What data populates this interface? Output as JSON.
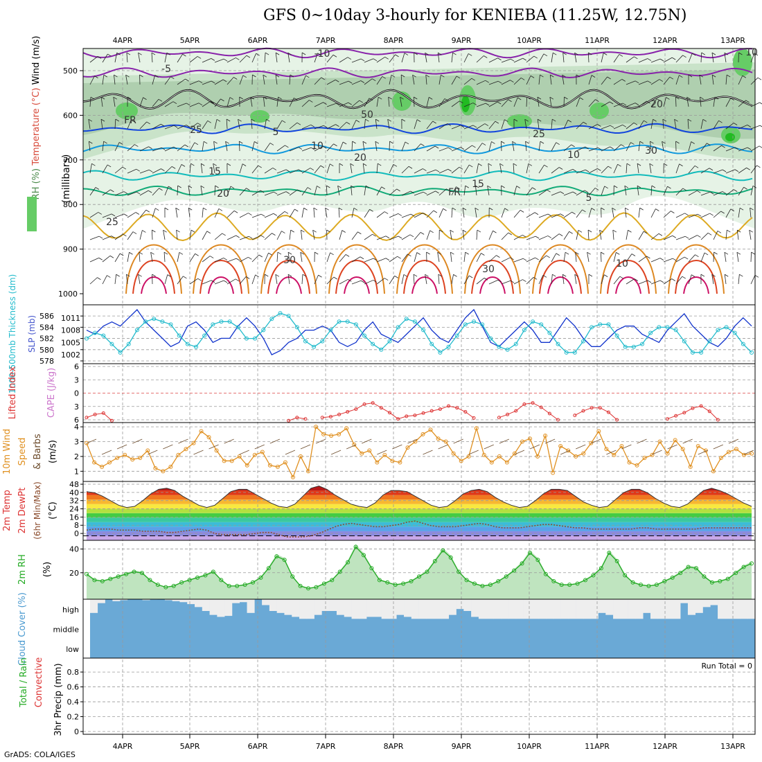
{
  "title": "GFS 0~10day 3-hourly for KENIEBA (11.25W, 12.75N)",
  "credit": "GrADS: COLA/IGES",
  "run_total_label": "Run Total = 0",
  "colors": {
    "grid": "#999999",
    "slp": "#1133cc",
    "thickness": "#22bbcc",
    "lifted_index": "#dd3333",
    "wind_speed": "#e09020",
    "barb": "#6b4a2a",
    "rh": "#22aa22",
    "rh_fill": "#bfe4bf",
    "cloud_base": "#6aa9d6",
    "cloud_gap": "#eeeeee",
    "dewpoint": "#8a4a2a"
  },
  "chart_data": [
    {
      "type": "heatmap",
      "name": "upper-air",
      "ylabel_parts": [
        "RH (%)",
        "Temperature (°C)",
        "Wind (m/s)"
      ],
      "ylabel_units": "(millibars)",
      "y_ticks": [
        500,
        600,
        700,
        800,
        900,
        1000
      ],
      "ylim": [
        1000,
        450
      ],
      "x_ticks": [
        "4APR",
        "5APR",
        "6APR",
        "7APR",
        "8APR",
        "9APR",
        "10APR",
        "11APR",
        "12APR",
        "13APR"
      ],
      "contour_labels": [
        "-10",
        "-5",
        "FR",
        "5",
        "10",
        "15",
        "20",
        "25",
        "30",
        "10",
        "15",
        "20",
        "25",
        "30",
        "5",
        "10",
        "20",
        "25",
        "FR",
        "30",
        "10",
        "50"
      ],
      "isotherms": [
        {
          "label": "-10",
          "level": 460,
          "color": "#8822aa"
        },
        {
          "label": "-5",
          "level": 505,
          "color": "#8822aa"
        },
        {
          "label": "FR",
          "level": 565,
          "color": "#000000"
        },
        {
          "label": "5",
          "level": 630,
          "color": "#1144dd"
        },
        {
          "label": "10",
          "level": 675,
          "color": "#1199dd"
        },
        {
          "label": "15",
          "level": 735,
          "color": "#11bbbb"
        },
        {
          "label": "20",
          "level": 770,
          "color": "#11aa77"
        },
        {
          "label": "25",
          "level": 850,
          "color": "#ddaa22"
        }
      ]
    },
    {
      "type": "line",
      "name": "thickness-slp",
      "ylabel_left": "1000-500mb Thickness (dm)",
      "ylabel_right": "SLP (mb)",
      "thickness_ticks": [
        578,
        580,
        582,
        584,
        586
      ],
      "slp_ticks": [
        1002,
        1005,
        1008,
        1011
      ],
      "ylim_thickness": [
        578,
        587.5
      ],
      "ylim_slp": [
        1000.5,
        1013.5
      ],
      "series": [
        {
          "name": "SLP",
          "values": [
            1008,
            1007,
            1009,
            1010,
            1009,
            1011,
            1013,
            1010,
            1008,
            1006,
            1004,
            1005,
            1009,
            1010,
            1008,
            1005,
            1006,
            1006,
            1009,
            1011,
            1009,
            1006,
            1002,
            1003,
            1005,
            1006,
            1008,
            1008,
            1009,
            1008,
            1005,
            1004,
            1005,
            1008,
            1010,
            1007,
            1006,
            1005,
            1007,
            1009,
            1011,
            1008,
            1006,
            1005,
            1008,
            1011,
            1013,
            1009,
            1005,
            1004,
            1006,
            1008,
            1010,
            1008,
            1005,
            1005,
            1008,
            1011,
            1009,
            1006,
            1004,
            1004,
            1006,
            1008,
            1009,
            1009,
            1007,
            1006,
            1005,
            1008,
            1010,
            1012,
            1009,
            1007,
            1005,
            1004,
            1006,
            1009,
            1011,
            1009
          ]
        },
        {
          "name": "Thickness",
          "values": [
            582,
            583,
            582.5,
            581,
            579.5,
            581,
            583.5,
            585,
            585.5,
            585,
            584.5,
            582.5,
            581,
            580.5,
            582.5,
            584.5,
            585,
            585,
            584,
            582,
            582,
            583.5,
            585.5,
            586.5,
            586,
            584,
            581.5,
            580.5,
            581.5,
            583.5,
            585,
            585,
            584.5,
            582.5,
            581,
            580,
            581.5,
            584,
            585.5,
            585,
            583.5,
            581,
            579.5,
            580.5,
            582.5,
            584.5,
            585,
            584.5,
            582,
            580.5,
            580,
            581,
            583.5,
            585,
            584.5,
            583,
            581,
            579.5,
            579.5,
            581.5,
            584,
            584.5,
            584.5,
            582.5,
            580.5,
            580.5,
            581,
            583,
            584,
            584,
            583.5,
            581.5,
            579.5,
            579.5,
            581.5,
            583.5,
            584,
            583,
            581,
            579.5
          ]
        }
      ]
    },
    {
      "type": "line",
      "name": "lifted-index-cape",
      "ylabel_left": "Lifted Index",
      "ylabel_right": "CAPE (J/kg)",
      "y_ticks": [
        -6,
        -3,
        0,
        3,
        6
      ],
      "y_tick_labels": [
        "6",
        "3",
        "0",
        "3",
        "6"
      ],
      "ylim": [
        -6,
        6
      ],
      "series": [
        {
          "name": "Lifted Index",
          "values": [
            5.5,
            4.8,
            4.5,
            6.2,
            null,
            null,
            null,
            null,
            null,
            null,
            null,
            null,
            null,
            null,
            null,
            null,
            null,
            null,
            null,
            null,
            null,
            null,
            null,
            null,
            6.2,
            5.5,
            5.8,
            null,
            5.5,
            5.3,
            4.8,
            4.2,
            3.6,
            2.5,
            2.2,
            3.3,
            4.4,
            5.8,
            5.2,
            5.0,
            4.5,
            4.0,
            3.6,
            2.9,
            3.3,
            4.2,
            5.6,
            null,
            null,
            5.5,
            4.8,
            4.0,
            2.5,
            2.2,
            3.2,
            4.6,
            6.0,
            null,
            5.0,
            4.0,
            3.3,
            3.3,
            4.3,
            6.0,
            null,
            null,
            null,
            null,
            null,
            5.8,
            5.1,
            4.4,
            3.4,
            2.9,
            4.1,
            6.0,
            null,
            null,
            null,
            null
          ]
        }
      ]
    },
    {
      "type": "line",
      "name": "wind-10m",
      "ylabel": "10m Wind Speed & Barbs (m/s)",
      "y_ticks": [
        1,
        2,
        3,
        4
      ],
      "ylim": [
        0.5,
        4.1
      ],
      "series": [
        {
          "name": "Speed",
          "values": [
            2.9,
            1.6,
            1.3,
            1.6,
            1.9,
            2.1,
            1.8,
            1.9,
            2.4,
            1.2,
            1.0,
            1.3,
            2.1,
            2.5,
            2.9,
            3.7,
            3.3,
            2.4,
            1.7,
            1.7,
            2.0,
            1.4,
            2.1,
            2.3,
            1.4,
            1.3,
            1.6,
            0.6,
            2.0,
            1.0,
            4.0,
            3.5,
            3.4,
            3.5,
            3.9,
            2.8,
            2.2,
            2.4,
            1.6,
            2.1,
            1.7,
            1.6,
            2.6,
            3.0,
            3.5,
            3.8,
            3.2,
            3.0,
            2.2,
            1.7,
            2.0,
            3.9,
            2.1,
            1.6,
            2.0,
            1.6,
            2.2,
            3.0,
            3.2,
            2.0,
            3.4,
            0.9,
            2.7,
            2.4,
            2.0,
            2.2,
            2.9,
            3.7,
            2.5,
            2.1,
            2.7,
            1.6,
            1.4,
            1.9,
            2.1,
            3.0,
            2.2,
            3.1,
            2.5,
            1.3,
            2.7,
            2.4,
            1.0,
            1.9,
            2.3,
            2.5,
            2.1,
            2.2
          ]
        }
      ]
    },
    {
      "type": "area",
      "name": "temperature-dewpoint",
      "ylabel": "2m Temp 2m DewPt (6hr Min/Max) (°C)",
      "y_ticks": [
        0,
        8,
        16,
        24,
        32,
        40,
        48
      ],
      "ylim": [
        -4,
        48
      ],
      "series": [
        {
          "name": "2m Temp",
          "values": [
            39,
            38,
            35,
            31,
            27,
            25,
            26,
            31,
            37,
            41,
            42,
            40,
            35,
            31,
            27,
            25,
            27,
            33,
            39,
            41,
            41,
            37,
            33,
            29,
            26,
            25,
            28,
            35,
            42,
            44,
            41,
            36,
            32,
            28,
            26,
            25,
            29,
            36,
            40,
            40,
            39,
            35,
            31,
            27,
            25,
            26,
            31,
            37,
            40,
            41,
            39,
            34,
            30,
            27,
            25,
            26,
            31,
            37,
            41,
            41,
            40,
            35,
            30,
            27,
            25,
            26,
            32,
            38,
            41,
            41,
            38,
            33,
            29,
            26,
            25,
            28,
            34,
            40,
            42,
            40,
            37,
            33,
            29,
            26
          ]
        },
        {
          "name": "2m DewPt",
          "values": [
            5,
            6,
            6,
            6,
            5,
            5,
            5,
            4,
            4,
            4,
            3,
            3,
            4,
            5,
            6,
            5,
            2,
            1,
            1,
            1,
            1,
            2,
            3,
            3,
            1,
            -1,
            -1,
            -1,
            0,
            2,
            5,
            8,
            10,
            11,
            10,
            9,
            8,
            8,
            9,
            10,
            12,
            13,
            11,
            9,
            8,
            8,
            8,
            9,
            10,
            11,
            10,
            8,
            7,
            7,
            7,
            8,
            9,
            10,
            10,
            9,
            8,
            7,
            7,
            6,
            6,
            6,
            6,
            6,
            6,
            7,
            7,
            6,
            6,
            6,
            6,
            6,
            6,
            7,
            7,
            7,
            7,
            7,
            7,
            7
          ]
        }
      ]
    },
    {
      "type": "area",
      "name": "rh-2m",
      "ylabel": "2m RH (%)",
      "y_ticks": [
        20,
        40
      ],
      "ylim": [
        0,
        45
      ],
      "series": [
        {
          "name": "2m RH",
          "values": [
            20,
            15,
            14,
            16,
            18,
            20,
            22,
            21,
            15,
            11,
            9,
            10,
            13,
            15,
            17,
            19,
            22,
            15,
            10,
            10,
            11,
            13,
            17,
            25,
            35,
            32,
            18,
            10,
            8,
            9,
            12,
            15,
            22,
            30,
            43,
            36,
            25,
            15,
            13,
            11,
            12,
            14,
            18,
            22,
            31,
            40,
            34,
            22,
            15,
            12,
            10,
            11,
            14,
            18,
            23,
            29,
            38,
            32,
            20,
            14,
            11,
            11,
            12,
            15,
            19,
            25,
            38,
            31,
            19,
            13,
            11,
            10,
            11,
            14,
            17,
            21,
            26,
            25,
            18,
            13,
            14,
            16,
            21,
            26,
            29
          ]
        }
      ]
    },
    {
      "type": "bar",
      "name": "cloud-cover",
      "ylabel": "Cloud Cover (%)",
      "levels": [
        "high",
        "middle",
        "low"
      ],
      "series": [
        {
          "name": "high",
          "values": [
            30,
            80,
            100,
            90,
            95,
            100,
            100,
            95,
            98,
            100,
            95,
            90,
            85,
            75,
            60,
            40,
            20,
            10,
            15,
            80,
            85,
            30,
            100,
            70,
            40,
            30,
            20,
            10,
            0,
            0,
            20,
            40,
            40,
            20,
            10,
            0,
            0,
            10,
            10,
            0,
            0,
            20,
            10,
            0,
            0,
            0,
            0,
            0,
            20,
            50,
            40,
            10,
            0,
            0,
            0,
            0,
            0,
            0,
            0,
            0,
            0,
            0,
            0,
            0,
            0,
            0,
            0,
            0,
            30,
            20,
            0,
            0,
            0,
            0,
            30,
            0,
            0,
            0,
            0,
            80,
            20,
            30,
            60,
            70,
            0,
            0,
            0,
            0,
            0
          ]
        },
        {
          "name": "middle",
          "values": [
            0,
            0,
            0,
            0,
            0,
            0,
            0,
            0,
            0,
            0,
            0,
            0,
            0,
            0,
            0,
            0,
            0,
            0,
            0,
            0,
            0,
            0,
            0,
            0,
            0,
            0,
            0,
            0,
            0,
            0,
            0,
            0,
            0,
            0,
            0,
            0,
            0,
            0,
            0,
            0,
            0,
            0,
            0,
            0,
            0,
            0,
            0,
            0,
            0,
            0,
            0,
            0,
            0,
            0,
            0,
            0,
            0,
            0,
            0,
            0,
            0,
            0,
            0,
            0,
            0,
            0,
            0,
            0,
            0,
            0,
            0,
            0,
            0,
            0,
            0,
            0,
            0,
            0,
            0,
            0,
            0,
            0,
            0,
            0,
            0,
            0,
            0,
            0,
            0
          ]
        },
        {
          "name": "low",
          "values": [
            0,
            0,
            0,
            0,
            0,
            0,
            0,
            0,
            0,
            0,
            0,
            0,
            0,
            0,
            0,
            0,
            0,
            0,
            0,
            0,
            0,
            0,
            0,
            0,
            0,
            0,
            0,
            0,
            0,
            0,
            0,
            0,
            0,
            0,
            0,
            0,
            0,
            0,
            0,
            0,
            0,
            0,
            0,
            0,
            0,
            0,
            0,
            0,
            0,
            0,
            0,
            0,
            0,
            0,
            0,
            0,
            0,
            0,
            0,
            0,
            0,
            0,
            0,
            0,
            0,
            0,
            0,
            0,
            0,
            0,
            0,
            0,
            0,
            0,
            0,
            0,
            0,
            0,
            0,
            0,
            0,
            0,
            0,
            0,
            0,
            0,
            0,
            0,
            0
          ]
        }
      ]
    },
    {
      "type": "bar",
      "name": "precip-3hr",
      "ylabel_left": "Total / Rain Convective",
      "ylabel_right": "3hr Precip (mm)",
      "y_ticks": [
        0,
        0.2,
        0.4,
        0.6,
        0.8
      ],
      "y_tick_labels": [
        "0",
        "0.2",
        "0.4",
        "0.6",
        "0.8"
      ],
      "ylim": [
        0,
        0.95
      ],
      "series": [
        {
          "name": "Total / Rain",
          "values": []
        },
        {
          "name": "Convective",
          "values": []
        }
      ]
    }
  ]
}
